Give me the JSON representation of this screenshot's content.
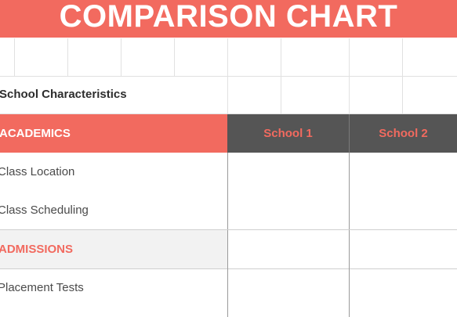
{
  "accent_color": "#f26a5f",
  "header_dark_color": "#555555",
  "title": "COMPARISON CHART",
  "section_title": "School Characteristics",
  "columns": [
    "School 1",
    "School 2"
  ],
  "categories": [
    {
      "name": "ACADEMICS",
      "rows": [
        "Class Location",
        "Class Scheduling"
      ]
    },
    {
      "name": "ADMISSIONS",
      "rows": [
        "Placement Tests"
      ]
    }
  ]
}
